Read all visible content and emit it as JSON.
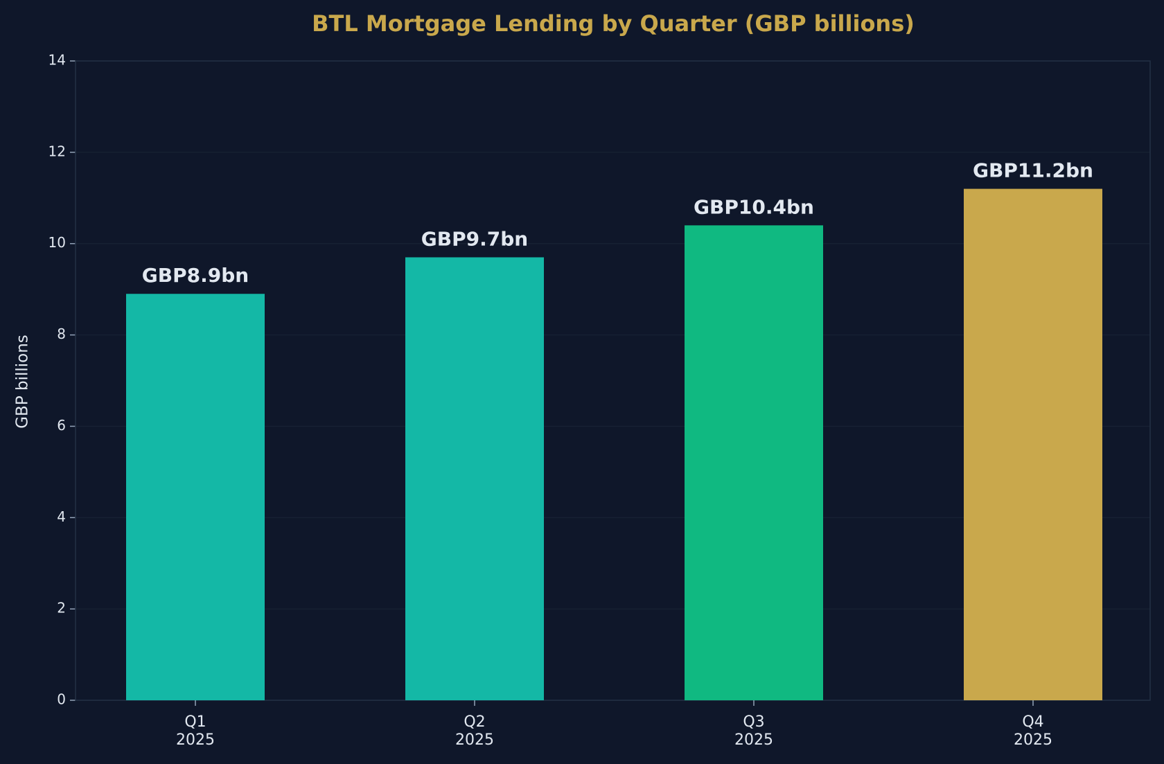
{
  "chart_data": {
    "type": "bar",
    "title": "BTL Mortgage Lending by Quarter (GBP billions)",
    "y_label": "GBP billions",
    "categories": [
      [
        "Q1",
        "2025"
      ],
      [
        "Q2",
        "2025"
      ],
      [
        "Q3",
        "2025"
      ],
      [
        "Q4",
        "2025"
      ]
    ],
    "values": [
      8.9,
      9.7,
      10.4,
      11.2
    ],
    "value_labels": [
      "GBP8.9bn",
      "GBP9.7bn",
      "GBP10.4bn",
      "GBP11.2bn"
    ],
    "colors": [
      "#14b8a6",
      "#14b8a6",
      "#10b981",
      "#c9a84c"
    ],
    "ylim": [
      0,
      14
    ],
    "yticks": [
      0,
      2,
      4,
      6,
      8,
      10,
      12,
      14
    ],
    "grid": true
  }
}
